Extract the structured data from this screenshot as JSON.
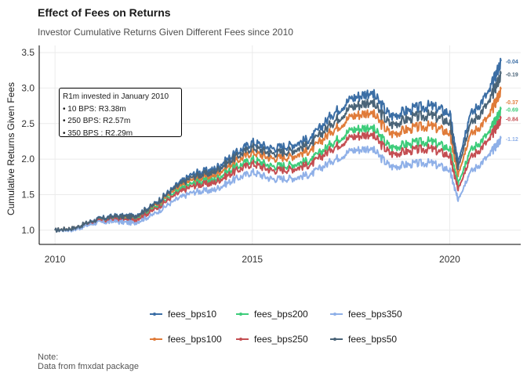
{
  "title": "Effect of Fees on Returns",
  "subtitle": "Investor Cumulative Returns Given Different Fees since 2010",
  "annotation": {
    "heading": "R1m invested in January 2010",
    "lines": [
      "• 10 BPS: R3.38m",
      "• 250 BPS: R2.57m",
      "• 350 BPS : R2.29m"
    ]
  },
  "note": {
    "label": "Note:",
    "text": "Data from fmxdat package"
  },
  "chart_data": {
    "type": "line",
    "title": "Effect of Fees on Returns",
    "subtitle": "Investor Cumulative Returns Given Different Fees since 2010",
    "xlabel": "",
    "ylabel": "Cumulative Returns Given Fees",
    "xlim": [
      2009.6,
      2021.8
    ],
    "ylim": [
      0.8,
      3.6
    ],
    "x_ticks": [
      2010,
      2015,
      2020
    ],
    "x_tick_labels": [
      "2010",
      "2015",
      "2020"
    ],
    "y_ticks": [
      1.0,
      1.5,
      2.0,
      2.5,
      3.0,
      3.5
    ],
    "y_tick_labels": [
      "1.0",
      "1.5",
      "2.0",
      "2.5",
      "3.0",
      "3.5"
    ],
    "grid": true,
    "legend_position": "bottom",
    "x": [
      2010.0,
      2010.5,
      2011.0,
      2011.5,
      2012.0,
      2012.5,
      2013.0,
      2013.5,
      2014.0,
      2014.5,
      2015.0,
      2015.5,
      2016.0,
      2016.5,
      2017.0,
      2017.5,
      2018.0,
      2018.5,
      2019.0,
      2019.5,
      2020.0,
      2020.2,
      2020.5,
      2021.0,
      2021.3
    ],
    "series": [
      {
        "name": "fees_bps10",
        "color": "#3b6ea5",
        "end_label": "-0.04",
        "values": [
          1.0,
          1.03,
          1.15,
          1.2,
          1.2,
          1.36,
          1.6,
          1.8,
          1.85,
          2.05,
          2.24,
          2.15,
          2.2,
          2.3,
          2.62,
          2.85,
          2.95,
          2.6,
          2.7,
          2.75,
          2.65,
          1.95,
          2.6,
          2.95,
          3.38
        ]
      },
      {
        "name": "fees_bps100",
        "color": "#e07b39",
        "end_label": "-0.37",
        "values": [
          1.0,
          1.03,
          1.14,
          1.18,
          1.17,
          1.33,
          1.55,
          1.72,
          1.76,
          1.94,
          2.1,
          2.01,
          2.04,
          2.13,
          2.39,
          2.6,
          2.67,
          2.35,
          2.43,
          2.47,
          2.37,
          1.78,
          2.32,
          2.6,
          2.98
        ]
      },
      {
        "name": "fees_bps200",
        "color": "#3dcc7a",
        "end_label": "-0.69",
        "values": [
          1.0,
          1.02,
          1.13,
          1.16,
          1.15,
          1.3,
          1.51,
          1.67,
          1.7,
          1.86,
          2.0,
          1.9,
          1.92,
          1.99,
          2.22,
          2.41,
          2.46,
          2.16,
          2.22,
          2.25,
          2.15,
          1.66,
          2.1,
          2.37,
          2.7
        ]
      },
      {
        "name": "fees_bps250",
        "color": "#c44e52",
        "end_label": "-0.84",
        "values": [
          1.0,
          1.02,
          1.12,
          1.15,
          1.14,
          1.28,
          1.48,
          1.63,
          1.66,
          1.81,
          1.94,
          1.84,
          1.86,
          1.93,
          2.14,
          2.31,
          2.36,
          2.07,
          2.12,
          2.15,
          2.05,
          1.58,
          2.0,
          2.27,
          2.57
        ]
      },
      {
        "name": "fees_bps350",
        "color": "#8fb0e8",
        "end_label": "-1.12",
        "values": [
          1.0,
          1.01,
          1.1,
          1.12,
          1.1,
          1.22,
          1.41,
          1.54,
          1.56,
          1.7,
          1.82,
          1.72,
          1.73,
          1.79,
          1.97,
          2.12,
          2.16,
          1.89,
          1.93,
          1.95,
          1.85,
          1.43,
          1.8,
          2.05,
          2.29
        ]
      },
      {
        "name": "fees_bps50",
        "color": "#4a6478",
        "end_label": "-0.19",
        "values": [
          1.0,
          1.03,
          1.14,
          1.19,
          1.19,
          1.35,
          1.58,
          1.76,
          1.81,
          2.0,
          2.17,
          2.08,
          2.12,
          2.22,
          2.5,
          2.73,
          2.82,
          2.48,
          2.58,
          2.62,
          2.52,
          1.88,
          2.47,
          2.8,
          3.2
        ]
      }
    ]
  }
}
